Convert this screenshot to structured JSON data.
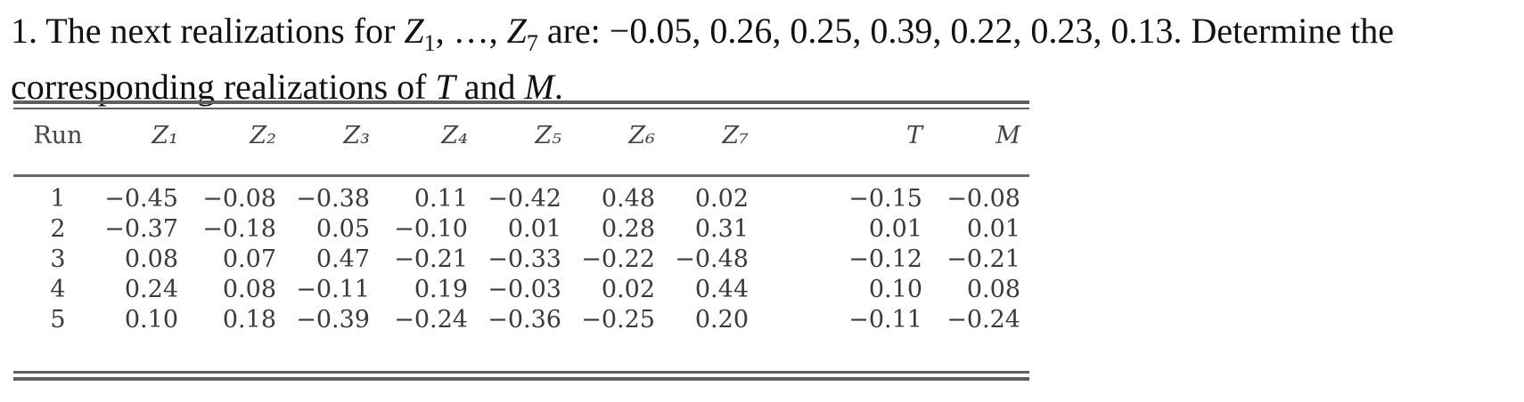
{
  "problem": {
    "prefix": "1. The next realizations for ",
    "var_z": "Z",
    "sub_start": "1",
    "mid": ", …, ",
    "sub_end": "7",
    "values_text": " are: −0.05, 0.26, 0.25, 0.39, 0.22, 0.23, 0.13. Determine the corresponding realizations of ",
    "var_t": "T",
    "and_text": " and ",
    "var_m": "M",
    "suffix": "."
  },
  "table": {
    "headers": [
      "Run",
      "Z1",
      "Z2",
      "Z3",
      "Z4",
      "Z5",
      "Z6",
      "Z7",
      "T",
      "M"
    ],
    "header_display": [
      "Run",
      "Z₁",
      "Z₂",
      "Z₃",
      "Z₄",
      "Z₅",
      "Z₆",
      "Z₇",
      "T",
      "M"
    ],
    "rows": [
      [
        "1",
        "−0.45",
        "−0.08",
        "−0.38",
        "0.11",
        "−0.42",
        "0.48",
        "0.02",
        "−0.15",
        "−0.08"
      ],
      [
        "2",
        "−0.37",
        "−0.18",
        "0.05",
        "−0.10",
        "0.01",
        "0.28",
        "0.31",
        "0.01",
        "0.01"
      ],
      [
        "3",
        "0.08",
        "0.07",
        "0.47",
        "−0.21",
        "−0.33",
        "−0.22",
        "−0.48",
        "−0.12",
        "−0.21"
      ],
      [
        "4",
        "0.24",
        "0.08",
        "−0.11",
        "0.19",
        "−0.03",
        "0.02",
        "0.44",
        "0.10",
        "0.08"
      ],
      [
        "5",
        "0.10",
        "0.18",
        "−0.39",
        "−0.24",
        "−0.36",
        "−0.25",
        "0.20",
        "−0.11",
        "−0.24"
      ]
    ]
  }
}
